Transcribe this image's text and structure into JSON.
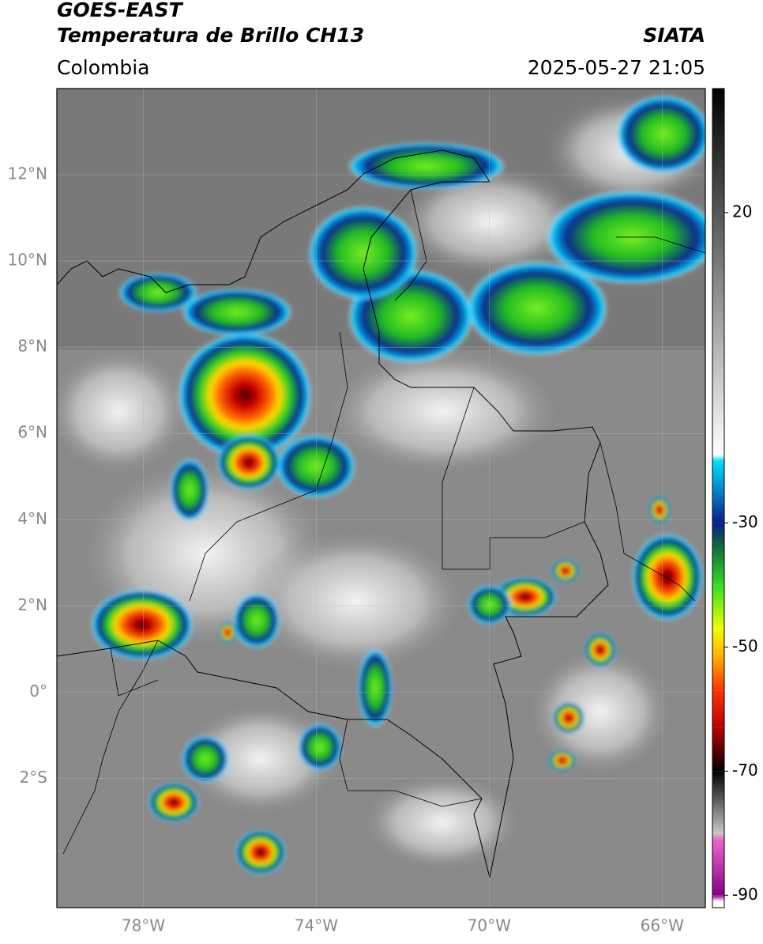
{
  "header": {
    "title": "GOES-EAST",
    "subtitle": "Temperatura de Brillo CH13",
    "source": "SIATA",
    "region": "Colombia",
    "datetime": "2025-05-27 21:05"
  },
  "map": {
    "xlim": [
      -80,
      -65
    ],
    "ylim": [
      -5,
      14
    ],
    "xticks": [
      {
        "value": -78,
        "label": "78°W"
      },
      {
        "value": -74,
        "label": "74°W"
      },
      {
        "value": -70,
        "label": "70°W"
      },
      {
        "value": -66,
        "label": "66°W"
      }
    ],
    "yticks": [
      {
        "value": 12,
        "label": "12°N"
      },
      {
        "value": 10,
        "label": "10°N"
      },
      {
        "value": 8,
        "label": "8°N"
      },
      {
        "value": 6,
        "label": "6°N"
      },
      {
        "value": 4,
        "label": "4°N"
      },
      {
        "value": 2,
        "label": "2°N"
      },
      {
        "value": 0,
        "label": "0°"
      },
      {
        "value": -2,
        "label": "2°S"
      }
    ],
    "grid": true
  },
  "colorbar": {
    "lim": [
      40,
      -92
    ],
    "ticks": [
      20,
      -30,
      -50,
      -70,
      -90
    ],
    "colors": [
      {
        "value": 40,
        "color": "#000000"
      },
      {
        "value": -19,
        "color": "#ffffff"
      },
      {
        "value": -20,
        "color": "#00e0ff"
      },
      {
        "value": -30,
        "color": "#0a1e8c"
      },
      {
        "value": -33,
        "color": "#0e5a46"
      },
      {
        "value": -40,
        "color": "#33dd22"
      },
      {
        "value": -47,
        "color": "#eeff00"
      },
      {
        "value": -51,
        "color": "#ffbb00"
      },
      {
        "value": -57,
        "color": "#ff3300"
      },
      {
        "value": -63,
        "color": "#bb0000"
      },
      {
        "value": -70,
        "color": "#000000"
      },
      {
        "value": -80,
        "color": "#c8c8c8"
      },
      {
        "value": -81,
        "color": "#ee66cc"
      },
      {
        "value": -90,
        "color": "#880088"
      },
      {
        "value": -91,
        "color": "#ffffff"
      }
    ]
  }
}
